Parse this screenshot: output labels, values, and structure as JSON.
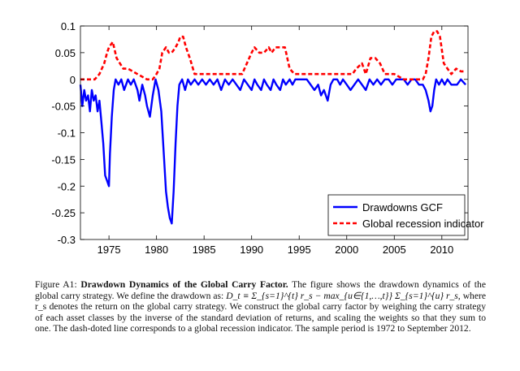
{
  "chart_data": {
    "type": "line",
    "title": "",
    "xlabel": "",
    "ylabel": "",
    "xlim": [
      1972,
      2012.75
    ],
    "ylim": [
      -0.3,
      0.1
    ],
    "xticks": [
      1975,
      1980,
      1985,
      1990,
      1995,
      2000,
      2005,
      2010
    ],
    "xtick_labels": [
      "1975",
      "1980",
      "1985",
      "1990",
      "1995",
      "2000",
      "2005",
      "2010"
    ],
    "yticks": [
      0.1,
      0.05,
      0,
      -0.05,
      -0.1,
      -0.15,
      -0.2,
      -0.25,
      -0.3
    ],
    "ytick_labels": [
      "0.1",
      "0.05",
      "0",
      "-0.05",
      "-0.1",
      "-0.15",
      "-0.2",
      "-0.25",
      "-0.3"
    ],
    "grid": false,
    "legend": {
      "placement": "bottom-right",
      "entries": [
        "Drawdowns GCF",
        "Global recession indicator"
      ]
    },
    "series": [
      {
        "name": "Drawdowns GCF",
        "color": "#0000ff",
        "style": "solid",
        "x": [
          1972.0,
          1972.2,
          1972.4,
          1972.6,
          1972.8,
          1973.0,
          1973.2,
          1973.4,
          1973.6,
          1973.8,
          1974.0,
          1974.2,
          1974.4,
          1974.6,
          1974.8,
          1975.0,
          1975.1,
          1975.3,
          1975.5,
          1975.7,
          1976.0,
          1976.3,
          1976.6,
          1977.0,
          1977.3,
          1977.6,
          1978.0,
          1978.2,
          1978.5,
          1978.8,
          1979.0,
          1979.3,
          1979.6,
          1979.9,
          1980.2,
          1980.5,
          1980.8,
          1981.0,
          1981.2,
          1981.4,
          1981.6,
          1981.8,
          1982.0,
          1982.2,
          1982.4,
          1982.7,
          1983.0,
          1983.3,
          1983.6,
          1984.0,
          1984.4,
          1984.8,
          1985.2,
          1985.6,
          1986.0,
          1986.4,
          1986.8,
          1987.2,
          1987.6,
          1988.0,
          1988.4,
          1988.8,
          1989.2,
          1989.6,
          1990.0,
          1990.3,
          1990.6,
          1991.0,
          1991.3,
          1991.6,
          1992.0,
          1992.3,
          1992.6,
          1993.0,
          1993.3,
          1993.6,
          1994.0,
          1994.3,
          1994.6,
          1995.0,
          1995.4,
          1995.8,
          1996.2,
          1996.6,
          1997.0,
          1997.3,
          1997.6,
          1998.0,
          1998.3,
          1998.6,
          1999.0,
          1999.3,
          1999.6,
          2000.0,
          2000.4,
          2000.8,
          2001.2,
          2001.6,
          2002.0,
          2002.4,
          2002.8,
          2003.2,
          2003.6,
          2004.0,
          2004.4,
          2004.8,
          2005.2,
          2005.6,
          2006.0,
          2006.4,
          2006.8,
          2007.2,
          2007.6,
          2008.0,
          2008.3,
          2008.6,
          2008.8,
          2009.0,
          2009.2,
          2009.4,
          2009.7,
          2010.0,
          2010.3,
          2010.6,
          2011.0,
          2011.3,
          2011.6,
          2012.0,
          2012.5
        ],
        "y": [
          -0.01,
          -0.05,
          -0.02,
          -0.04,
          -0.03,
          -0.06,
          -0.02,
          -0.04,
          -0.03,
          -0.06,
          -0.04,
          -0.08,
          -0.12,
          -0.18,
          -0.19,
          -0.2,
          -0.14,
          -0.07,
          -0.02,
          0,
          -0.01,
          0,
          -0.02,
          0,
          -0.01,
          0,
          -0.02,
          -0.04,
          -0.01,
          -0.03,
          -0.05,
          -0.07,
          -0.03,
          0,
          -0.02,
          -0.06,
          -0.15,
          -0.21,
          -0.24,
          -0.26,
          -0.27,
          -0.21,
          -0.12,
          -0.05,
          -0.01,
          0,
          -0.02,
          0,
          -0.01,
          0,
          -0.01,
          0,
          -0.01,
          0,
          -0.01,
          0,
          -0.02,
          0,
          -0.01,
          0,
          -0.01,
          -0.02,
          0,
          -0.01,
          -0.02,
          0,
          -0.01,
          -0.02,
          0,
          -0.01,
          -0.02,
          0,
          -0.01,
          -0.02,
          0,
          -0.01,
          0,
          -0.01,
          0,
          0,
          0,
          0,
          -0.01,
          -0.02,
          -0.01,
          -0.03,
          -0.02,
          -0.04,
          -0.01,
          0,
          0,
          -0.01,
          0,
          -0.01,
          -0.02,
          -0.01,
          0,
          -0.01,
          -0.02,
          0,
          -0.01,
          0,
          -0.01,
          0,
          0,
          -0.01,
          0,
          0,
          0,
          -0.01,
          0,
          0,
          -0.01,
          -0.01,
          -0.02,
          -0.04,
          -0.06,
          -0.05,
          -0.02,
          0,
          -0.01,
          0,
          -0.01,
          0,
          -0.01,
          -0.01,
          -0.01,
          0,
          -0.01
        ],
        "points_note": "approximate values read from plot"
      },
      {
        "name": "Global recession indicator",
        "color": "#ff0000",
        "style": "dashed",
        "x": [
          1972.0,
          1973.5,
          1974.0,
          1974.5,
          1974.8,
          1975.0,
          1975.4,
          1975.8,
          1976.5,
          1977.0,
          1978.0,
          1979.0,
          1979.6,
          1980.0,
          1980.3,
          1980.6,
          1981.0,
          1981.3,
          1981.6,
          1982.0,
          1982.3,
          1982.5,
          1982.8,
          1983.1,
          1983.5,
          1984.0,
          1985.0,
          1986.0,
          1987.0,
          1988.0,
          1989.0,
          1990.0,
          1990.3,
          1990.8,
          1991.3,
          1991.8,
          1992.1,
          1992.5,
          1993.0,
          1993.5,
          1994.0,
          1994.5,
          1995.0,
          1995.5,
          1996.0,
          1997.0,
          1998.0,
          1999.0,
          2000.0,
          2000.6,
          2001.0,
          2001.6,
          2002.0,
          2002.5,
          2003.0,
          2003.5,
          2004.0,
          2005.0,
          2006.0,
          2007.0,
          2008.0,
          2008.3,
          2008.6,
          2008.9,
          2009.2,
          2009.5,
          2009.8,
          2010.2,
          2010.6,
          2011.0,
          2011.5,
          2012.0,
          2012.5
        ],
        "y": [
          0,
          0,
          0.01,
          0.03,
          0.05,
          0.06,
          0.07,
          0.04,
          0.02,
          0.02,
          0.01,
          0,
          0,
          0.01,
          0.02,
          0.05,
          0.06,
          0.05,
          0.05,
          0.06,
          0.07,
          0.08,
          0.08,
          0.06,
          0.04,
          0.01,
          0.01,
          0.01,
          0.01,
          0.01,
          0.01,
          0.05,
          0.06,
          0.05,
          0.05,
          0.06,
          0.05,
          0.06,
          0.06,
          0.06,
          0.02,
          0.01,
          0.01,
          0.01,
          0.01,
          0.01,
          0.01,
          0.01,
          0.01,
          0.01,
          0.02,
          0.03,
          0.01,
          0.04,
          0.04,
          0.03,
          0.01,
          0.01,
          0,
          0,
          0,
          0.01,
          0.04,
          0.08,
          0.09,
          0.09,
          0.08,
          0.03,
          0.02,
          0.01,
          0.02,
          0.015,
          0.015
        ]
      }
    ]
  },
  "caption": {
    "label": "Figure A1:",
    "title": "Drawdown Dynamics of the Global Carry Factor.",
    "text1": "The figure shows the drawdown dynamics of the global carry strategy. We define the drawdown as:",
    "formula": "D_t ≡ Σ_{s=1}^{t} r_s − max_{u∈{1,…,t}} Σ_{s=1}^{u} r_s,",
    "text2": "where r_s denotes the return on the global carry strategy. We construct the global carry factor by weighing the carry strategy of each asset classes by the inverse of the standard deviation of returns, and scaling the weights so that they sum to one. The dash-doted line corresponds to a global recession indicator. The sample period is 1972 to September 2012."
  }
}
